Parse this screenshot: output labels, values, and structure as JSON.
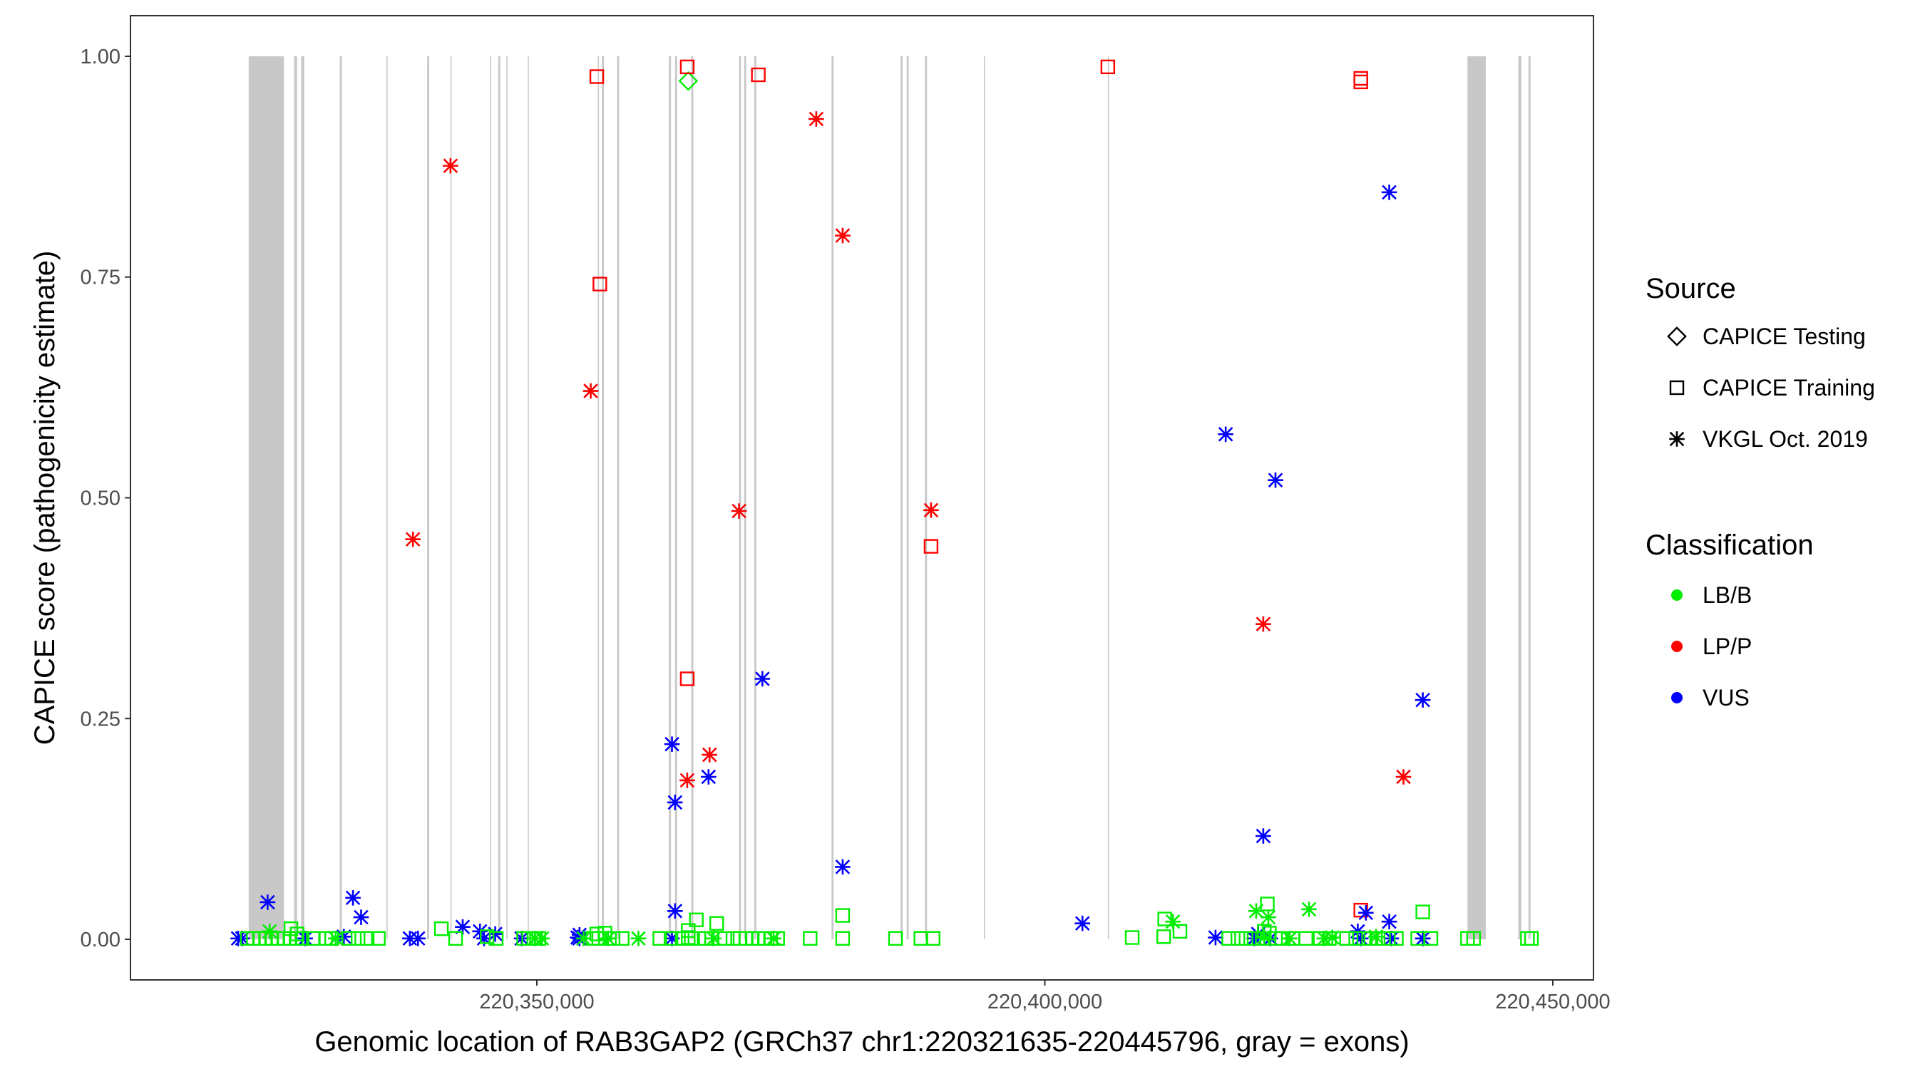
{
  "chart_data": {
    "type": "scatter",
    "xlabel": "Genomic location of RAB3GAP2 (GRCh37 chr1:220321635-220445796, gray = exons)",
    "ylabel": "CAPICE score (pathogenicity estimate)",
    "xlim": [
      220310000,
      220454000
    ],
    "ylim": [
      -0.046,
      1.046
    ],
    "x_ticks": [
      220350000,
      220400000,
      220450000
    ],
    "x_tick_labels": [
      "220,350,000",
      "220,400,000",
      "220,450,000"
    ],
    "y_ticks": [
      0.0,
      0.25,
      0.5,
      0.75,
      1.0
    ],
    "y_tick_labels": [
      "0.00",
      "0.25",
      "0.50",
      "0.75",
      "1.00"
    ],
    "grid": false,
    "exons": [
      [
        220321635,
        220325100
      ],
      [
        220326100,
        220326400
      ],
      [
        220326800,
        220327100
      ],
      [
        220330600,
        220330800
      ],
      [
        220335200,
        220335300
      ],
      [
        220339200,
        220339400
      ],
      [
        220341500,
        220341600
      ],
      [
        220345400,
        220345500
      ],
      [
        220346200,
        220346400
      ],
      [
        220347000,
        220347100
      ],
      [
        220349100,
        220349200
      ],
      [
        220356000,
        220356100
      ],
      [
        220356400,
        220356600
      ],
      [
        220357900,
        220358100
      ],
      [
        220363000,
        220363200
      ],
      [
        220363600,
        220363800
      ],
      [
        220365200,
        220365400
      ],
      [
        220369900,
        220370100
      ],
      [
        220370400,
        220370600
      ],
      [
        220371400,
        220371600
      ],
      [
        220379000,
        220379200
      ],
      [
        220385800,
        220386000
      ],
      [
        220386400,
        220386600
      ],
      [
        220388200,
        220388400
      ],
      [
        220394000,
        220394100
      ],
      [
        220406200,
        220406300
      ],
      [
        220441600,
        220443400
      ],
      [
        220446600,
        220446900
      ],
      [
        220447600,
        220447800
      ]
    ],
    "legend": {
      "source": {
        "title": "Source",
        "items": [
          {
            "label": "CAPICE Testing",
            "shape": "diamond"
          },
          {
            "label": "CAPICE Training",
            "shape": "square"
          },
          {
            "label": "VKGL Oct. 2019",
            "shape": "asterisk"
          }
        ]
      },
      "classification": {
        "title": "Classification",
        "items": [
          {
            "label": "LB/B",
            "color": "#00ee00"
          },
          {
            "label": "LP/P",
            "color": "#ff0000"
          },
          {
            "label": "VUS",
            "color": "#0000ff"
          }
        ]
      },
      "placement": "right"
    },
    "series": [
      {
        "source": "CAPICE Testing",
        "classification": "LB/B",
        "shape": "diamond",
        "color": "#00ee00",
        "x": [
          220364900
        ],
        "y": [
          0.972
        ]
      },
      {
        "source": "CAPICE Testing",
        "classification": "LB/B",
        "shape": "diamond",
        "color": "#00ee00",
        "x": [],
        "y": []
      },
      {
        "source": "CAPICE Training",
        "classification": "LP/P",
        "shape": "square",
        "color": "#ff0000",
        "x": [
          220364800,
          220355900,
          220371800,
          220356200,
          220364800,
          220388800,
          220406200,
          220431100,
          220431100,
          220431100
        ],
        "y": [
          0.988,
          0.977,
          0.979,
          0.742,
          0.295,
          0.445,
          0.988,
          0.971,
          0.975,
          0.033
        ]
      },
      {
        "source": "VKGL Oct. 2019",
        "classification": "LP/P",
        "shape": "asterisk",
        "color": "#ff0000",
        "x": [
          220341500,
          220337800,
          220355300,
          220377500,
          220380100,
          220369900,
          220388800,
          220364800,
          220367000,
          220421500,
          220435300
        ],
        "y": [
          0.876,
          0.453,
          0.621,
          0.929,
          0.797,
          0.485,
          0.486,
          0.18,
          0.209,
          0.357,
          0.184
        ]
      },
      {
        "source": "VKGL Oct. 2019",
        "classification": "VUS",
        "shape": "asterisk",
        "color": "#0000ff",
        "x": [
          220433900,
          220417800,
          220422700,
          220437200,
          220421500,
          220372200,
          220363300,
          220363600,
          220366900,
          220380100,
          220323500,
          220331900,
          220332700,
          220363600,
          220342700,
          220403700,
          220344400,
          220345900,
          220331000,
          220354200,
          220421000,
          220430800,
          220431600,
          220433900,
          220354000,
          220437200,
          220320600,
          220321000,
          220327200,
          220337500,
          220338300,
          220344800,
          220348500,
          220354200,
          220363300,
          220416800,
          220420600,
          220422200,
          220431100,
          220434100,
          220437200
        ],
        "y": [
          0.846,
          0.572,
          0.52,
          0.271,
          0.117,
          0.295,
          0.221,
          0.155,
          0.184,
          0.082,
          0.042,
          0.047,
          0.025,
          0.032,
          0.014,
          0.018,
          0.009,
          0.006,
          0.003,
          0.005,
          0.006,
          0.009,
          0.03,
          0.02,
          0.002,
          0.001,
          0.001,
          0.001,
          0.001,
          0.001,
          0.001,
          0.001,
          0.001,
          0.001,
          0.001,
          0.002,
          0.001,
          0.001,
          0.001,
          0.001,
          0.001
        ]
      },
      {
        "source": "VKGL Oct. 2019",
        "classification": "LB/B",
        "shape": "asterisk",
        "color": "#00ee00",
        "x": [
          220323700,
          220412600,
          220420800,
          220422000,
          220426000,
          220421600,
          220428300,
          220432600,
          220330200,
          220349800,
          220350500,
          220354600,
          220360000,
          220357000,
          220367400,
          220373300,
          220424100,
          220427500
        ],
        "y": [
          0.009,
          0.02,
          0.032,
          0.025,
          0.034,
          0.003,
          0.002,
          0.003,
          0.001,
          0.001,
          0.001,
          0.001,
          0.001,
          0.001,
          0.001,
          0.001,
          0.001,
          0.001
        ]
      },
      {
        "source": "CAPICE Training",
        "classification": "LB/B",
        "shape": "square",
        "color": "#00ee00",
        "x": [
          220321500,
          220322100,
          220322700,
          220323300,
          220323900,
          220324500,
          220325100,
          220325700,
          220326300,
          220326900,
          220325800,
          220326400,
          220328000,
          220329200,
          220329800,
          220331500,
          220332400,
          220333300,
          220334400,
          220340600,
          220342000,
          220345100,
          220346000,
          220348700,
          220349200,
          220349700,
          220350200,
          220355500,
          220356100,
          220356700,
          220357500,
          220358400,
          220362100,
          220363200,
          220364300,
          220364900,
          220365700,
          220366600,
          220367200,
          220367700,
          220368500,
          220369300,
          220370000,
          220370600,
          220371200,
          220371800,
          220372400,
          220373000,
          220373700,
          220364900,
          220365200,
          220367200,
          220355900,
          220376900,
          220380100,
          220380100,
          220385300,
          220387800,
          220389000,
          220408600,
          220411800,
          220411700,
          220413300,
          220418100,
          220419000,
          220419800,
          220420600,
          220421400,
          220422100,
          220421600,
          220421900,
          220422700,
          220423300,
          220424400,
          220425700,
          220427100,
          220428000,
          220429700,
          220430600,
          220431400,
          220432100,
          220432800,
          220433800,
          220434600,
          220436700,
          220437200,
          220438000,
          220441600,
          220442200,
          220447500,
          220447900
        ],
        "y": [
          0.001,
          0.001,
          0.001,
          0.001,
          0.001,
          0.001,
          0.001,
          0.001,
          0.001,
          0.001,
          0.012,
          0.006,
          0.001,
          0.001,
          0.001,
          0.001,
          0.001,
          0.001,
          0.001,
          0.012,
          0.001,
          0.003,
          0.001,
          0.001,
          0.001,
          0.001,
          0.001,
          0.001,
          0.001,
          0.007,
          0.001,
          0.001,
          0.001,
          0.001,
          0.001,
          0.002,
          0.022,
          0.001,
          0.001,
          0.018,
          0.001,
          0.001,
          0.001,
          0.001,
          0.001,
          0.001,
          0.001,
          0.001,
          0.001,
          0.01,
          0.001,
          0.001,
          0.006,
          0.001,
          0.001,
          0.027,
          0.001,
          0.001,
          0.001,
          0.002,
          0.023,
          0.003,
          0.009,
          0.001,
          0.001,
          0.001,
          0.001,
          0.001,
          0.007,
          0.009,
          0.04,
          0.001,
          0.001,
          0.001,
          0.001,
          0.001,
          0.001,
          0.001,
          0.001,
          0.001,
          0.001,
          0.001,
          0.001,
          0.001,
          0.001,
          0.031,
          0.001,
          0.001,
          0.001,
          0.001,
          0.001
        ]
      }
    ]
  }
}
